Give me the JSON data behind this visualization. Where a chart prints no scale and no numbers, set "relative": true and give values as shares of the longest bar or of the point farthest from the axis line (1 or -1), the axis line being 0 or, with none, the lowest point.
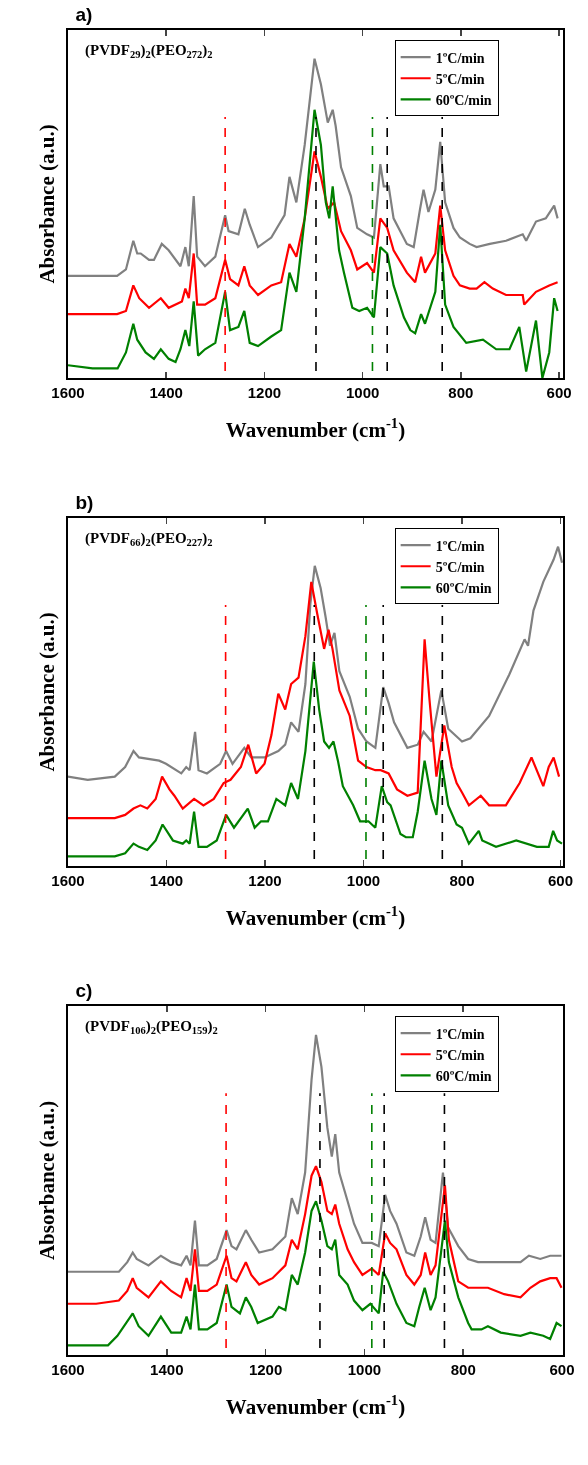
{
  "chart_data": [
    {
      "type": "line",
      "title": "a)",
      "annotations": [
        "(PVDF$_{29}$)$_{2}$(PEO$_{272}$)$_{2}$"
      ],
      "xlabel": "Wavenumber (cm$^{-1}$)",
      "ylabel": "Absorbance (a.u.)",
      "legend": "top right",
      "relative": true,
      "xlim": [
        1600,
        592
      ],
      "xticks": [
        1600,
        1400,
        1200,
        1000,
        800,
        600
      ],
      "ref_lines": [
        {
          "axis": "x",
          "value": 1280,
          "color": "#ff0000",
          "line_style": "dashed"
        },
        {
          "axis": "x",
          "value": 980,
          "color": "#008000",
          "line_style": "dashed"
        },
        {
          "axis": "x",
          "value": 1095,
          "color": "#000000",
          "line_style": "dashed"
        },
        {
          "axis": "x",
          "value": 950,
          "color": "#000000",
          "line_style": "dashed"
        },
        {
          "axis": "x",
          "value": 838,
          "color": "#000000",
          "line_style": "dashed"
        }
      ],
      "series": [
        {
          "name": "1ºC/min",
          "color": "#808080",
          "x": [
            1600,
            1550,
            1500,
            1482,
            1467,
            1459,
            1452,
            1435,
            1425,
            1409,
            1395,
            1371,
            1361,
            1354,
            1344,
            1337,
            1321,
            1300,
            1280,
            1273,
            1253,
            1240,
            1230,
            1213,
            1186,
            1159,
            1149,
            1135,
            1118,
            1098,
            1085,
            1071,
            1061,
            1055,
            1044,
            1024,
            1011,
            991,
            977,
            964,
            957,
            947,
            937,
            910,
            896,
            883,
            876,
            866,
            852,
            842,
            832,
            815,
            802,
            782,
            768,
            741,
            708,
            674,
            667,
            647,
            627,
            610,
            603
          ],
          "values": [
            0.32,
            0.32,
            0.32,
            0.34,
            0.43,
            0.39,
            0.39,
            0.37,
            0.37,
            0.42,
            0.4,
            0.35,
            0.41,
            0.35,
            0.57,
            0.38,
            0.35,
            0.38,
            0.51,
            0.46,
            0.45,
            0.53,
            0.48,
            0.41,
            0.44,
            0.51,
            0.63,
            0.55,
            0.73,
            1.0,
            0.92,
            0.8,
            0.84,
            0.79,
            0.66,
            0.57,
            0.47,
            0.45,
            0.44,
            0.67,
            0.6,
            0.6,
            0.5,
            0.42,
            0.41,
            0.53,
            0.59,
            0.52,
            0.59,
            0.74,
            0.55,
            0.47,
            0.44,
            0.42,
            0.41,
            0.42,
            0.43,
            0.45,
            0.43,
            0.49,
            0.5,
            0.54,
            0.5
          ]
        },
        {
          "name": "5ºC/min",
          "color": "#ff0000",
          "x": [
            1600,
            1550,
            1500,
            1482,
            1467,
            1455,
            1435,
            1411,
            1395,
            1368,
            1361,
            1354,
            1344,
            1337,
            1321,
            1300,
            1280,
            1270,
            1253,
            1241,
            1230,
            1213,
            1186,
            1166,
            1149,
            1135,
            1118,
            1098,
            1085,
            1071,
            1058,
            1044,
            1024,
            1011,
            991,
            977,
            964,
            950,
            937,
            910,
            893,
            881,
            873,
            852,
            842,
            832,
            815,
            802,
            782,
            768,
            752,
            735,
            708,
            674,
            671,
            647,
            620,
            603
          ],
          "values": [
            0.2,
            0.2,
            0.2,
            0.21,
            0.29,
            0.25,
            0.22,
            0.25,
            0.22,
            0.24,
            0.28,
            0.25,
            0.39,
            0.23,
            0.23,
            0.25,
            0.37,
            0.31,
            0.29,
            0.35,
            0.29,
            0.26,
            0.29,
            0.3,
            0.42,
            0.38,
            0.5,
            0.71,
            0.63,
            0.53,
            0.55,
            0.46,
            0.4,
            0.34,
            0.36,
            0.33,
            0.5,
            0.47,
            0.4,
            0.33,
            0.3,
            0.38,
            0.33,
            0.39,
            0.54,
            0.4,
            0.32,
            0.29,
            0.28,
            0.28,
            0.3,
            0.28,
            0.26,
            0.26,
            0.23,
            0.27,
            0.29,
            0.3
          ]
        },
        {
          "name": "60ºC/min",
          "color": "#008000",
          "x": [
            1600,
            1550,
            1499,
            1482,
            1467,
            1459,
            1442,
            1425,
            1411,
            1395,
            1381,
            1371,
            1361,
            1353,
            1344,
            1335,
            1321,
            1300,
            1280,
            1270,
            1253,
            1241,
            1230,
            1213,
            1186,
            1166,
            1149,
            1135,
            1118,
            1098,
            1085,
            1075,
            1068,
            1061,
            1048,
            1038,
            1021,
            1007,
            991,
            977,
            964,
            950,
            937,
            916,
            903,
            893,
            881,
            873,
            852,
            842,
            832,
            815,
            789,
            755,
            728,
            701,
            681,
            667,
            647,
            634,
            620,
            610,
            603
          ],
          "values": [
            0.04,
            0.03,
            0.03,
            0.08,
            0.17,
            0.12,
            0.08,
            0.06,
            0.09,
            0.06,
            0.05,
            0.09,
            0.15,
            0.1,
            0.24,
            0.07,
            0.09,
            0.11,
            0.27,
            0.15,
            0.16,
            0.21,
            0.11,
            0.1,
            0.13,
            0.15,
            0.33,
            0.27,
            0.5,
            0.84,
            0.73,
            0.55,
            0.5,
            0.6,
            0.4,
            0.33,
            0.22,
            0.21,
            0.22,
            0.19,
            0.41,
            0.39,
            0.29,
            0.19,
            0.15,
            0.14,
            0.2,
            0.17,
            0.27,
            0.48,
            0.23,
            0.16,
            0.11,
            0.12,
            0.09,
            0.09,
            0.16,
            0.02,
            0.18,
            0.0,
            0.08,
            0.25,
            0.21
          ]
        }
      ]
    },
    {
      "type": "line",
      "title": "b)",
      "annotations": [
        "(PVDF$_{66}$)$_{2}$(PEO$_{227}$)$_{2}$"
      ],
      "xlabel": "Wavenumber (cm$^{-1}$)",
      "ylabel": "Absorbance (a.u.)",
      "legend": "top right",
      "relative": true,
      "xlim": [
        1600,
        595
      ],
      "xticks": [
        1600,
        1400,
        1200,
        1000,
        800,
        600
      ],
      "ref_lines": [
        {
          "axis": "x",
          "value": 1280,
          "color": "#ff0000",
          "line_style": "dashed"
        },
        {
          "axis": "x",
          "value": 995,
          "color": "#008000",
          "line_style": "dashed"
        },
        {
          "axis": "x",
          "value": 1100,
          "color": "#000000",
          "line_style": "dashed"
        },
        {
          "axis": "x",
          "value": 960,
          "color": "#000000",
          "line_style": "dashed"
        },
        {
          "axis": "x",
          "value": 840,
          "color": "#000000",
          "line_style": "dashed"
        }
      ],
      "series": [
        {
          "name": "1ºC/min",
          "color": "#808080",
          "x": [
            1600,
            1560,
            1505,
            1484,
            1467,
            1456,
            1415,
            1401,
            1370,
            1360,
            1353,
            1342,
            1335,
            1318,
            1291,
            1279,
            1266,
            1242,
            1228,
            1201,
            1173,
            1159,
            1147,
            1132,
            1118,
            1108,
            1099,
            1087,
            1077,
            1068,
            1059,
            1049,
            1028,
            1011,
            994,
            976,
            960,
            949,
            938,
            911,
            890,
            878,
            862,
            842,
            828,
            800,
            783,
            745,
            704,
            673,
            666,
            655,
            635,
            614,
            605,
            597
          ],
          "values": [
            0.28,
            0.27,
            0.28,
            0.31,
            0.36,
            0.34,
            0.33,
            0.32,
            0.29,
            0.31,
            0.3,
            0.42,
            0.3,
            0.29,
            0.32,
            0.36,
            0.32,
            0.37,
            0.34,
            0.34,
            0.36,
            0.38,
            0.45,
            0.42,
            0.57,
            0.82,
            0.94,
            0.87,
            0.78,
            0.69,
            0.73,
            0.61,
            0.53,
            0.43,
            0.39,
            0.37,
            0.56,
            0.51,
            0.45,
            0.37,
            0.38,
            0.42,
            0.39,
            0.55,
            0.43,
            0.39,
            0.4,
            0.47,
            0.6,
            0.71,
            0.69,
            0.8,
            0.89,
            0.96,
            1.0,
            0.95
          ]
        },
        {
          "name": "5ºC/min",
          "color": "#ff0000",
          "x": [
            1600,
            1505,
            1484,
            1467,
            1453,
            1439,
            1422,
            1409,
            1394,
            1384,
            1367,
            1344,
            1325,
            1304,
            1284,
            1270,
            1249,
            1234,
            1218,
            1201,
            1187,
            1173,
            1159,
            1147,
            1132,
            1118,
            1106,
            1094,
            1080,
            1071,
            1063,
            1049,
            1028,
            1011,
            994,
            976,
            965,
            949,
            932,
            911,
            890,
            876,
            866,
            852,
            836,
            821,
            811,
            800,
            786,
            762,
            745,
            711,
            683,
            659,
            635,
            624,
            614,
            603
          ],
          "values": [
            0.15,
            0.15,
            0.16,
            0.18,
            0.19,
            0.18,
            0.21,
            0.28,
            0.24,
            0.22,
            0.18,
            0.21,
            0.19,
            0.21,
            0.26,
            0.27,
            0.31,
            0.38,
            0.29,
            0.32,
            0.41,
            0.54,
            0.49,
            0.57,
            0.59,
            0.72,
            0.89,
            0.79,
            0.68,
            0.74,
            0.68,
            0.55,
            0.47,
            0.33,
            0.31,
            0.3,
            0.3,
            0.29,
            0.24,
            0.22,
            0.23,
            0.71,
            0.52,
            0.28,
            0.44,
            0.31,
            0.26,
            0.23,
            0.19,
            0.22,
            0.19,
            0.19,
            0.26,
            0.34,
            0.25,
            0.31,
            0.34,
            0.28
          ]
        },
        {
          "name": "60ºC/min",
          "color": "#008000",
          "x": [
            1600,
            1505,
            1484,
            1467,
            1456,
            1439,
            1422,
            1408,
            1387,
            1367,
            1360,
            1353,
            1344,
            1335,
            1318,
            1298,
            1279,
            1263,
            1235,
            1221,
            1208,
            1194,
            1177,
            1159,
            1147,
            1133,
            1118,
            1101,
            1090,
            1080,
            1070,
            1061,
            1052,
            1042,
            1021,
            1007,
            990,
            976,
            963,
            952,
            945,
            925,
            914,
            900,
            890,
            876,
            862,
            852,
            842,
            828,
            811,
            800,
            786,
            766,
            759,
            731,
            690,
            648,
            624,
            615,
            607,
            597
          ],
          "values": [
            0.03,
            0.03,
            0.04,
            0.07,
            0.06,
            0.05,
            0.08,
            0.13,
            0.08,
            0.07,
            0.08,
            0.07,
            0.17,
            0.06,
            0.06,
            0.08,
            0.16,
            0.12,
            0.18,
            0.12,
            0.14,
            0.14,
            0.21,
            0.19,
            0.26,
            0.21,
            0.36,
            0.64,
            0.49,
            0.39,
            0.37,
            0.39,
            0.33,
            0.25,
            0.19,
            0.14,
            0.14,
            0.12,
            0.25,
            0.2,
            0.19,
            0.1,
            0.09,
            0.09,
            0.17,
            0.33,
            0.21,
            0.16,
            0.33,
            0.19,
            0.13,
            0.12,
            0.07,
            0.11,
            0.08,
            0.06,
            0.08,
            0.06,
            0.06,
            0.11,
            0.08,
            0.07
          ]
        }
      ]
    },
    {
      "type": "line",
      "title": "c)",
      "annotations": [
        "(PVDF$_{106}$)$_{2}$(PEO$_{159}$)$_{2}$"
      ],
      "xlabel": "Wavenumber (cm$^{-1}$)",
      "ylabel": "Absorbance (a.u.)",
      "legend": "top right",
      "relative": true,
      "xlim": [
        1600,
        598
      ],
      "xticks": [
        1600,
        1400,
        1200,
        1000,
        800,
        600
      ],
      "ref_lines": [
        {
          "axis": "x",
          "value": 1280,
          "color": "#ff0000",
          "line_style": "dashed"
        },
        {
          "axis": "x",
          "value": 985,
          "color": "#008000",
          "line_style": "dashed"
        },
        {
          "axis": "x",
          "value": 1090,
          "color": "#000000",
          "line_style": "dashed"
        },
        {
          "axis": "x",
          "value": 960,
          "color": "#000000",
          "line_style": "dashed"
        },
        {
          "axis": "x",
          "value": 838,
          "color": "#000000",
          "line_style": "dashed"
        }
      ],
      "series": [
        {
          "name": "1ºC/min",
          "color": "#808080",
          "x": [
            1600,
            1543,
            1497,
            1480,
            1469,
            1461,
            1437,
            1412,
            1391,
            1371,
            1360,
            1352,
            1343,
            1335,
            1318,
            1299,
            1279,
            1269,
            1259,
            1240,
            1229,
            1213,
            1186,
            1160,
            1147,
            1135,
            1120,
            1107,
            1098,
            1087,
            1075,
            1066,
            1059,
            1051,
            1034,
            1021,
            1004,
            985,
            971,
            958,
            948,
            935,
            915,
            899,
            886,
            877,
            866,
            856,
            841,
            831,
            810,
            790,
            770,
            750,
            717,
            684,
            667,
            644,
            624,
            601
          ],
          "values": [
            0.26,
            0.26,
            0.26,
            0.29,
            0.32,
            0.3,
            0.28,
            0.31,
            0.29,
            0.28,
            0.31,
            0.28,
            0.42,
            0.28,
            0.28,
            0.3,
            0.39,
            0.34,
            0.33,
            0.39,
            0.36,
            0.32,
            0.33,
            0.37,
            0.49,
            0.44,
            0.57,
            0.86,
            1.0,
            0.9,
            0.71,
            0.62,
            0.69,
            0.57,
            0.48,
            0.41,
            0.35,
            0.35,
            0.34,
            0.5,
            0.45,
            0.41,
            0.32,
            0.31,
            0.37,
            0.43,
            0.36,
            0.35,
            0.57,
            0.4,
            0.34,
            0.3,
            0.29,
            0.29,
            0.29,
            0.29,
            0.31,
            0.3,
            0.31,
            0.31
          ]
        },
        {
          "name": "5ºC/min",
          "color": "#ff0000",
          "x": [
            1600,
            1543,
            1497,
            1480,
            1469,
            1461,
            1437,
            1412,
            1391,
            1371,
            1360,
            1352,
            1343,
            1335,
            1318,
            1299,
            1279,
            1269,
            1259,
            1240,
            1229,
            1213,
            1186,
            1160,
            1147,
            1135,
            1120,
            1107,
            1098,
            1087,
            1075,
            1066,
            1059,
            1051,
            1034,
            1021,
            1004,
            985,
            971,
            958,
            948,
            935,
            915,
            899,
            886,
            877,
            866,
            856,
            837,
            829,
            810,
            790,
            770,
            750,
            717,
            684,
            664,
            644,
            624,
            611,
            601
          ],
          "values": [
            0.16,
            0.16,
            0.17,
            0.2,
            0.24,
            0.21,
            0.18,
            0.23,
            0.2,
            0.18,
            0.24,
            0.2,
            0.33,
            0.2,
            0.2,
            0.22,
            0.31,
            0.24,
            0.23,
            0.29,
            0.25,
            0.22,
            0.24,
            0.28,
            0.36,
            0.33,
            0.44,
            0.56,
            0.59,
            0.54,
            0.45,
            0.44,
            0.47,
            0.41,
            0.33,
            0.29,
            0.25,
            0.27,
            0.25,
            0.38,
            0.35,
            0.33,
            0.25,
            0.22,
            0.25,
            0.32,
            0.25,
            0.28,
            0.53,
            0.36,
            0.23,
            0.21,
            0.21,
            0.21,
            0.19,
            0.18,
            0.21,
            0.23,
            0.24,
            0.24,
            0.21
          ]
        },
        {
          "name": "60ºC/min",
          "color": "#008000",
          "x": [
            1600,
            1543,
            1519,
            1500,
            1469,
            1457,
            1437,
            1412,
            1391,
            1371,
            1360,
            1352,
            1343,
            1335,
            1318,
            1299,
            1279,
            1269,
            1252,
            1240,
            1229,
            1216,
            1186,
            1173,
            1160,
            1147,
            1135,
            1120,
            1107,
            1098,
            1087,
            1075,
            1066,
            1059,
            1051,
            1034,
            1021,
            1004,
            988,
            971,
            962,
            952,
            935,
            915,
            899,
            889,
            878,
            866,
            856,
            837,
            829,
            810,
            790,
            783,
            763,
            750,
            724,
            684,
            664,
            638,
            624,
            611,
            601
          ],
          "values": [
            0.03,
            0.03,
            0.03,
            0.06,
            0.13,
            0.09,
            0.06,
            0.12,
            0.07,
            0.07,
            0.12,
            0.08,
            0.22,
            0.08,
            0.08,
            0.1,
            0.22,
            0.15,
            0.13,
            0.18,
            0.15,
            0.1,
            0.12,
            0.15,
            0.14,
            0.25,
            0.22,
            0.32,
            0.45,
            0.48,
            0.42,
            0.34,
            0.33,
            0.36,
            0.25,
            0.22,
            0.17,
            0.14,
            0.16,
            0.13,
            0.26,
            0.23,
            0.16,
            0.1,
            0.09,
            0.15,
            0.21,
            0.14,
            0.18,
            0.42,
            0.29,
            0.18,
            0.1,
            0.08,
            0.08,
            0.09,
            0.07,
            0.06,
            0.07,
            0.06,
            0.05,
            0.1,
            0.09
          ]
        }
      ]
    }
  ]
}
